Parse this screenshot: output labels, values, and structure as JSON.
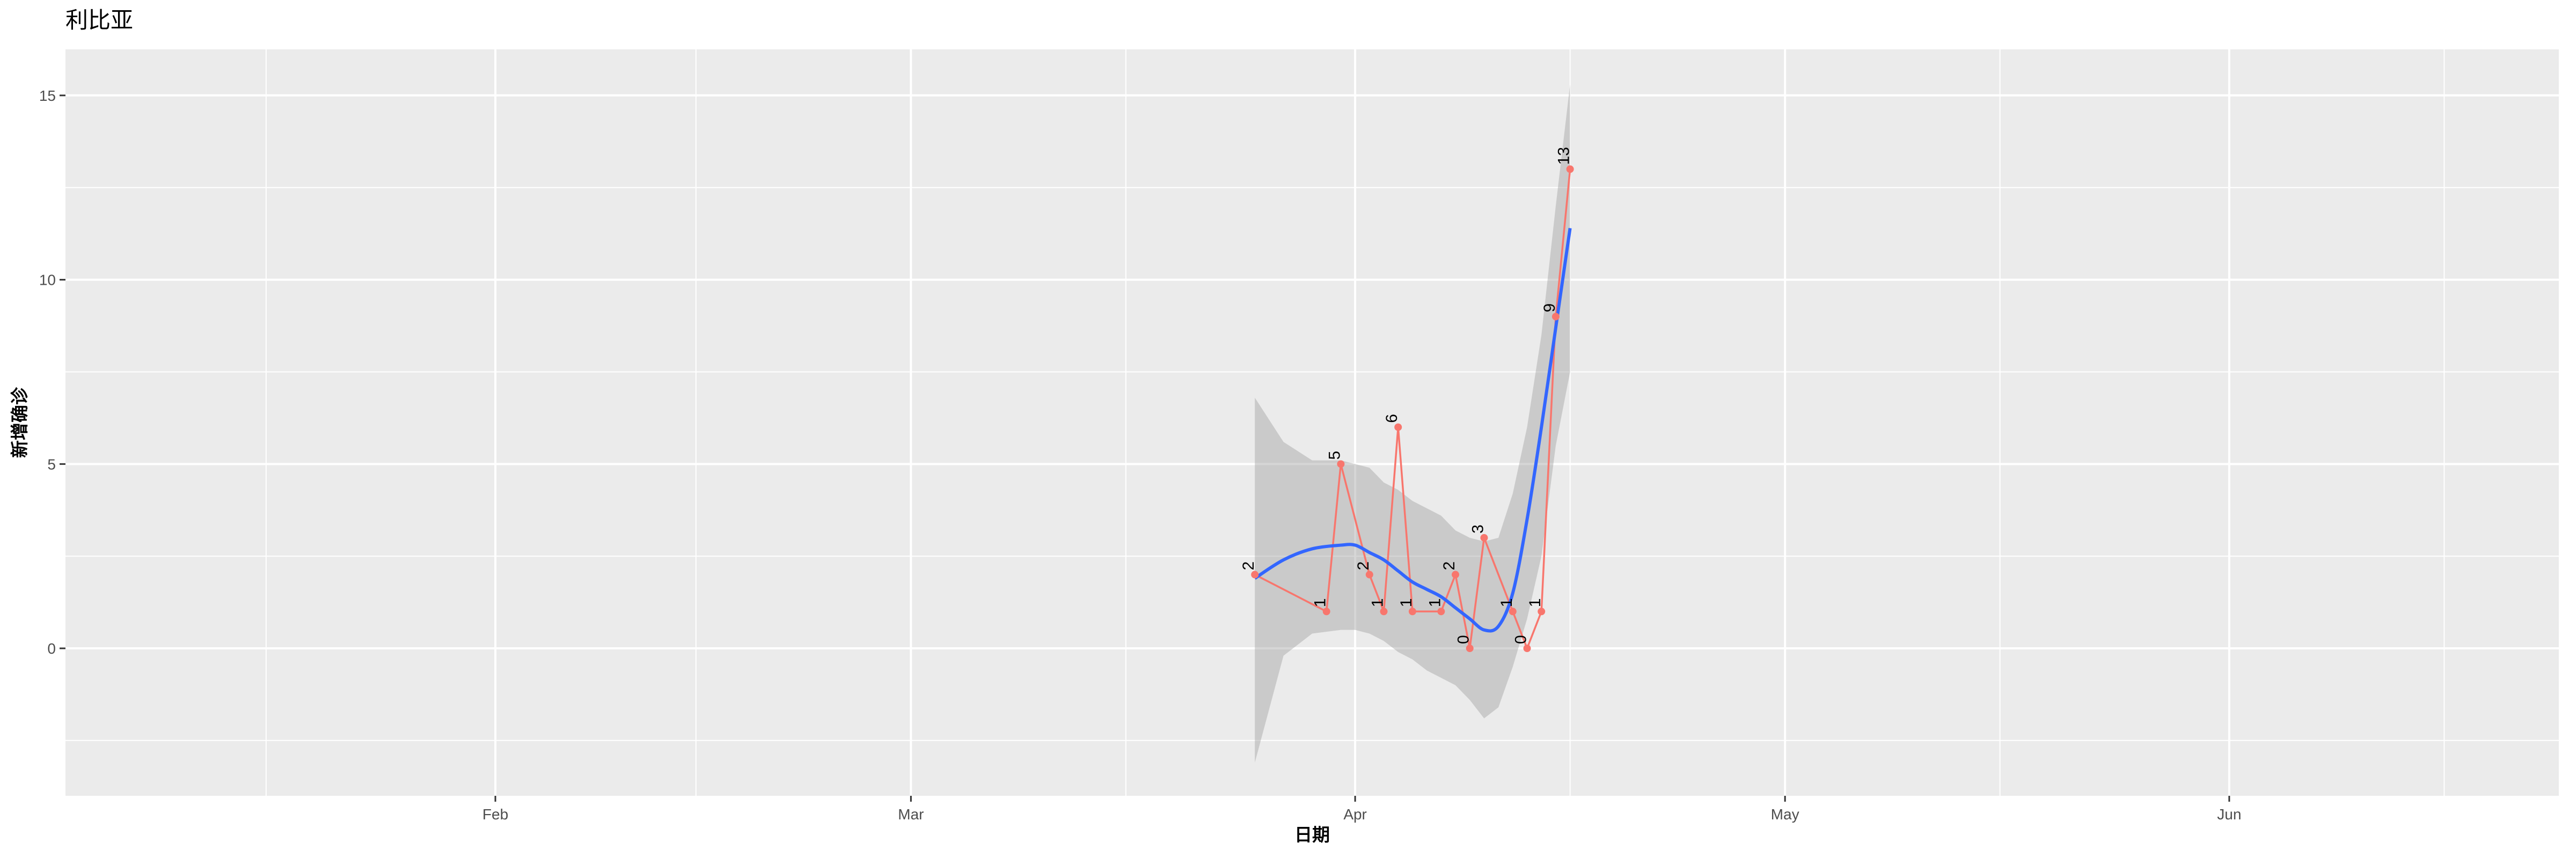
{
  "chart_data": {
    "type": "line",
    "title": "利比亚",
    "xlabel": "日期",
    "ylabel": "新增确诊",
    "xlim": [
      "2020-01-02",
      "2020-06-24"
    ],
    "ylim": [
      -4,
      16.25
    ],
    "x_ticks": [
      {
        "date": "2020-02-01",
        "label": "Feb"
      },
      {
        "date": "2020-03-01",
        "label": "Mar"
      },
      {
        "date": "2020-04-01",
        "label": "Apr"
      },
      {
        "date": "2020-05-01",
        "label": "May"
      },
      {
        "date": "2020-06-01",
        "label": "Jun"
      }
    ],
    "x_minor_ticks": [
      "2020-01-16",
      "2020-02-15",
      "2020-03-16",
      "2020-04-16",
      "2020-05-16",
      "2020-06-16"
    ],
    "y_ticks": [
      0,
      5,
      10,
      15
    ],
    "y_minor_ticks": [
      -2.5,
      2.5,
      7.5,
      12.5
    ],
    "grid": true,
    "series": [
      {
        "kind": "points-line-labels",
        "color": "#F8766D",
        "x": [
          "2020-03-25",
          "2020-03-30",
          "2020-03-31",
          "2020-04-02",
          "2020-04-03",
          "2020-04-04",
          "2020-04-05",
          "2020-04-07",
          "2020-04-08",
          "2020-04-09",
          "2020-04-10",
          "2020-04-12",
          "2020-04-13",
          "2020-04-14",
          "2020-04-15",
          "2020-04-16"
        ],
        "y": [
          2,
          1,
          5,
          2,
          1,
          6,
          1,
          1,
          2,
          0,
          3,
          1,
          0,
          1,
          9,
          13
        ]
      },
      {
        "kind": "smooth",
        "color": "#3366FF",
        "band_color": "#999999",
        "x": [
          "2020-03-25",
          "2020-03-27",
          "2020-03-29",
          "2020-03-31",
          "2020-04-01",
          "2020-04-02",
          "2020-04-03",
          "2020-04-04",
          "2020-04-05",
          "2020-04-06",
          "2020-04-07",
          "2020-04-08",
          "2020-04-09",
          "2020-04-10",
          "2020-04-11",
          "2020-04-12",
          "2020-04-13",
          "2020-04-14",
          "2020-04-15",
          "2020-04-16"
        ],
        "y": [
          1.9,
          2.4,
          2.7,
          2.8,
          2.8,
          2.6,
          2.4,
          2.1,
          1.8,
          1.6,
          1.4,
          1.1,
          0.8,
          0.5,
          0.6,
          1.5,
          3.5,
          6.0,
          8.7,
          11.4
        ],
        "upper": [
          6.8,
          5.6,
          5.1,
          5.1,
          5.0,
          4.9,
          4.5,
          4.3,
          4.0,
          3.8,
          3.6,
          3.2,
          3.0,
          2.9,
          3.0,
          4.2,
          6.0,
          8.5,
          12.0,
          15.3
        ],
        "lower": [
          -3.1,
          -0.2,
          0.4,
          0.5,
          0.5,
          0.4,
          0.2,
          -0.1,
          -0.3,
          -0.6,
          -0.8,
          -1.0,
          -1.4,
          -1.9,
          -1.6,
          -0.5,
          0.8,
          2.5,
          5.5,
          7.5
        ]
      }
    ]
  }
}
